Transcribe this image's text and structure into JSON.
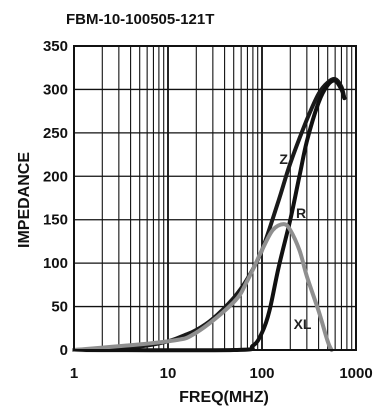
{
  "chart_data": {
    "type": "line",
    "title": "FBM-10-100505-121T",
    "xlabel": "FREQ(MHZ)",
    "ylabel": "IMPEDANCE",
    "x_scale": "log",
    "xlim": [
      1,
      1000
    ],
    "ylim": [
      0,
      350
    ],
    "x_ticks": [
      1,
      10,
      100,
      1000
    ],
    "x_tick_labels": [
      "1",
      "10",
      "100",
      "1000"
    ],
    "y_ticks": [
      0,
      50,
      100,
      150,
      200,
      250,
      300,
      350
    ],
    "y_tick_labels": [
      "0",
      "50",
      "100",
      "150",
      "200",
      "250",
      "300",
      "350"
    ],
    "grid": true,
    "series": [
      {
        "name": "Z",
        "color": "#1a1a1a",
        "x": [
          1,
          2,
          5,
          10,
          15,
          20,
          30,
          50,
          70,
          100,
          150,
          200,
          300,
          400,
          500,
          600,
          700,
          750
        ],
        "y": [
          0,
          1,
          4,
          10,
          17,
          23,
          36,
          60,
          82,
          115,
          172,
          215,
          265,
          295,
          308,
          312,
          303,
          290
        ]
      },
      {
        "name": "R",
        "color": "#111111",
        "x": [
          1,
          50,
          80,
          100,
          120,
          150,
          200,
          250,
          300,
          400,
          500,
          600,
          700,
          750
        ],
        "y": [
          0,
          0,
          5,
          20,
          45,
          95,
          150,
          200,
          240,
          285,
          305,
          310,
          300,
          290
        ]
      },
      {
        "name": "XL",
        "color": "#8f8f8f",
        "x": [
          1,
          10,
          20,
          50,
          70,
          100,
          130,
          170,
          200,
          250,
          300,
          400,
          500,
          550
        ],
        "y": [
          0,
          10,
          20,
          55,
          80,
          115,
          138,
          145,
          138,
          115,
          85,
          45,
          10,
          0
        ]
      }
    ],
    "annotations": [
      {
        "text": "Z",
        "x": 170,
        "y": 220
      },
      {
        "text": "R",
        "x": 260,
        "y": 158
      },
      {
        "text": "XL",
        "x": 270,
        "y": 30
      }
    ]
  }
}
